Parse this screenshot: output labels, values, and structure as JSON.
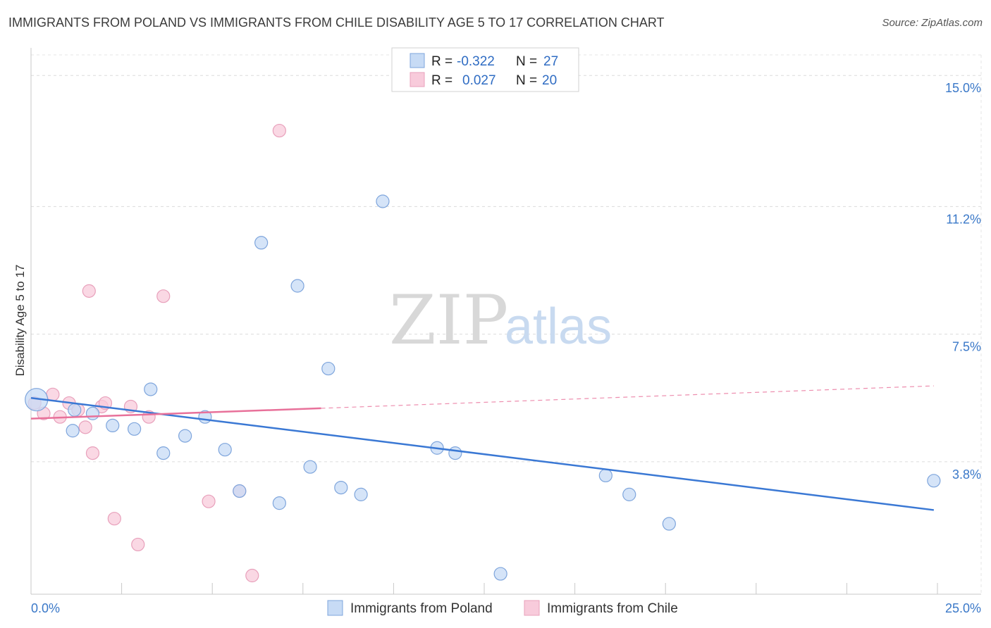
{
  "header": {
    "title": "IMMIGRANTS FROM POLAND VS IMMIGRANTS FROM CHILE DISABILITY AGE 5 TO 17 CORRELATION CHART",
    "source": "Source: ZipAtlas.com"
  },
  "watermark": {
    "zip": "ZIP",
    "atlas": "atlas"
  },
  "chart_data": {
    "type": "scatter",
    "title": "IMMIGRANTS FROM POLAND VS IMMIGRANTS FROM CHILE DISABILITY AGE 5 TO 17 CORRELATION CHART",
    "xlabel": "",
    "ylabel": "Disability Age 5 to 17",
    "xlim": [
      0,
      25
    ],
    "ylim": [
      0,
      15.8
    ],
    "x_tick_labels": {
      "min": "0.0%",
      "max": "25.0%"
    },
    "y_ticks": [
      {
        "value": 3.8,
        "label": "3.8%"
      },
      {
        "value": 7.5,
        "label": "7.5%"
      },
      {
        "value": 11.2,
        "label": "11.2%"
      },
      {
        "value": 15.0,
        "label": "15.0%"
      }
    ],
    "colors": {
      "poland": "#3a78d4",
      "poland_fill": "#c7dbf5",
      "chile": "#e8719a",
      "chile_fill": "#f8cbdb"
    },
    "legend": [
      {
        "r_label": "R =",
        "r_value": "-0.322",
        "n_label": "N =",
        "n_value": "27"
      },
      {
        "r_label": "R =",
        "r_value": "0.027",
        "n_label": "N =",
        "n_value": "20"
      }
    ],
    "series": [
      {
        "name": "Immigrants from Poland",
        "points": [
          [
            0.15,
            5.6
          ],
          [
            1.2,
            5.3
          ],
          [
            1.15,
            4.7
          ],
          [
            1.7,
            5.2
          ],
          [
            2.25,
            4.85
          ],
          [
            2.85,
            4.75
          ],
          [
            3.3,
            5.9
          ],
          [
            3.65,
            4.05
          ],
          [
            4.25,
            4.55
          ],
          [
            4.8,
            5.1
          ],
          [
            5.35,
            4.15
          ],
          [
            5.75,
            2.95
          ],
          [
            6.35,
            10.15
          ],
          [
            6.85,
            2.6
          ],
          [
            7.35,
            8.9
          ],
          [
            7.7,
            3.65
          ],
          [
            8.2,
            6.5
          ],
          [
            8.55,
            3.05
          ],
          [
            9.1,
            2.85
          ],
          [
            9.7,
            11.35
          ],
          [
            11.2,
            4.2
          ],
          [
            11.7,
            4.05
          ],
          [
            12.95,
            0.55
          ],
          [
            15.85,
            3.4
          ],
          [
            16.5,
            2.85
          ],
          [
            17.6,
            2.0
          ],
          [
            24.9,
            3.25
          ]
        ],
        "trend": {
          "x": [
            0,
            24.9
          ],
          "y": [
            5.65,
            2.4
          ]
        }
      },
      {
        "name": "Immigrants from Chile",
        "points": [
          [
            0.1,
            5.5
          ],
          [
            0.35,
            5.2
          ],
          [
            0.6,
            5.75
          ],
          [
            0.8,
            5.1
          ],
          [
            1.05,
            5.5
          ],
          [
            1.3,
            5.3
          ],
          [
            1.5,
            4.8
          ],
          [
            1.6,
            8.75
          ],
          [
            1.7,
            4.05
          ],
          [
            1.95,
            5.4
          ],
          [
            2.05,
            5.5
          ],
          [
            2.3,
            2.15
          ],
          [
            2.75,
            5.4
          ],
          [
            2.95,
            1.4
          ],
          [
            3.25,
            5.1
          ],
          [
            3.65,
            8.6
          ],
          [
            4.9,
            2.65
          ],
          [
            5.75,
            2.95
          ],
          [
            6.1,
            0.5
          ],
          [
            6.85,
            13.4
          ]
        ],
        "trend": {
          "x": [
            0,
            8.0
          ],
          "y": [
            5.05,
            5.35
          ]
        },
        "trend_extension": {
          "x": [
            8.0,
            24.9
          ],
          "y": [
            5.35,
            6.0
          ]
        }
      }
    ]
  }
}
